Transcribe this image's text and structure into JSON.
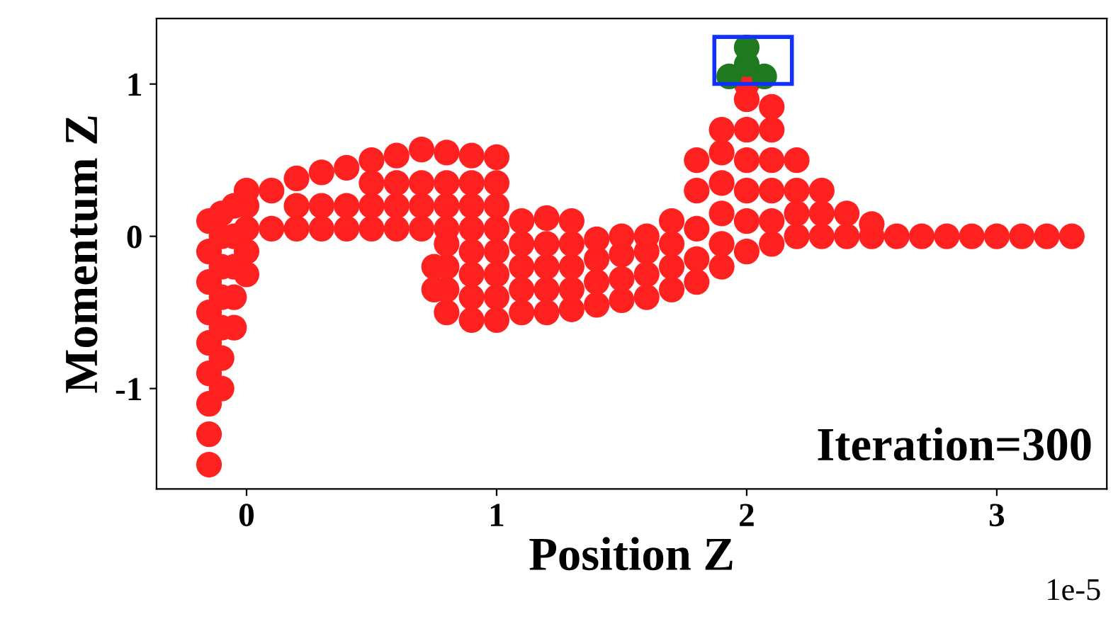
{
  "chart_data": {
    "type": "scatter",
    "xlabel": "Position Z",
    "ylabel": "Momentum Z",
    "xlim": [
      -0.36,
      3.44
    ],
    "ylim": [
      -1.66,
      1.43
    ],
    "xticks": [
      0,
      1,
      2,
      3
    ],
    "yticks": [
      -1,
      0,
      1
    ],
    "grid": false,
    "annotations": [
      "Iteration=300",
      "1e-5"
    ],
    "series": [
      {
        "color": "#ff2020",
        "marker": "circle",
        "x": [
          -0.15,
          -0.15,
          -0.15,
          -0.15,
          -0.15,
          -0.15,
          -0.15,
          -0.15,
          -0.15,
          -0.1,
          -0.1,
          -0.1,
          -0.1,
          -0.1,
          -0.1,
          -0.1,
          -0.05,
          -0.05,
          -0.05,
          -0.05,
          -0.05,
          0,
          0,
          0,
          0,
          0,
          0.1,
          0.1,
          0.2,
          0.2,
          0.2,
          0.3,
          0.3,
          0.3,
          0.4,
          0.4,
          0.4,
          0.5,
          0.5,
          0.5,
          0.5,
          0.6,
          0.6,
          0.6,
          0.6,
          0.7,
          0.7,
          0.7,
          0.7,
          0.8,
          0.8,
          0.8,
          0.8,
          0.9,
          0.9,
          0.9,
          0.9,
          1.0,
          1.0,
          1.0,
          1.0,
          0.75,
          0.75,
          0.8,
          0.8,
          0.8,
          0.8,
          0.9,
          0.9,
          0.9,
          0.9,
          1.0,
          1.0,
          1.0,
          1.0,
          1.0,
          1.1,
          1.1,
          1.1,
          1.1,
          1.1,
          1.2,
          1.2,
          1.2,
          1.2,
          1.2,
          1.3,
          1.3,
          1.3,
          1.3,
          1.3,
          1.4,
          1.4,
          1.4,
          1.4,
          1.5,
          1.5,
          1.5,
          1.5,
          1.6,
          1.6,
          1.6,
          1.6,
          1.7,
          1.7,
          1.7,
          1.7,
          1.8,
          1.8,
          1.8,
          1.8,
          1.8,
          1.9,
          1.9,
          1.9,
          1.9,
          1.9,
          1.9,
          2.0,
          2.0,
          2.0,
          2.0,
          2.0,
          2.0,
          2.0,
          2.1,
          2.1,
          2.1,
          2.1,
          2.1,
          2.1,
          2.2,
          2.2,
          2.2,
          2.2,
          2.3,
          2.3,
          2.3,
          2.4,
          2.4,
          2.5,
          2.5,
          2.6,
          2.7,
          2.8,
          2.9,
          3.0,
          3.1,
          3.2,
          3.3
        ],
        "values": [
          -1.5,
          -1.3,
          -1.1,
          -0.9,
          -0.7,
          -0.5,
          -0.3,
          -0.1,
          0.1,
          -1.0,
          -0.8,
          -0.6,
          -0.4,
          -0.2,
          0,
          0.15,
          -0.6,
          -0.4,
          -0.2,
          0,
          0.2,
          -0.25,
          -0.1,
          0.05,
          0.2,
          0.3,
          0.05,
          0.3,
          0.05,
          0.2,
          0.38,
          0.05,
          0.2,
          0.42,
          0.05,
          0.2,
          0.45,
          0.05,
          0.2,
          0.35,
          0.5,
          0.05,
          0.2,
          0.35,
          0.53,
          0.05,
          0.2,
          0.35,
          0.57,
          0.05,
          0.2,
          0.35,
          0.55,
          0.05,
          0.2,
          0.35,
          0.53,
          0.05,
          0.2,
          0.35,
          0.52,
          -0.2,
          -0.35,
          -0.5,
          -0.35,
          -0.2,
          -0.05,
          -0.55,
          -0.4,
          -0.25,
          -0.1,
          -0.55,
          -0.4,
          -0.25,
          -0.1,
          0.05,
          -0.5,
          -0.35,
          -0.2,
          -0.05,
          0.1,
          -0.5,
          -0.35,
          -0.2,
          -0.05,
          0.12,
          -0.48,
          -0.35,
          -0.2,
          -0.05,
          0.1,
          -0.45,
          -0.3,
          -0.15,
          -0.02,
          -0.42,
          -0.28,
          -0.12,
          0,
          -0.4,
          -0.25,
          -0.1,
          0,
          -0.35,
          -0.2,
          -0.05,
          0.1,
          -0.3,
          -0.15,
          0.05,
          0.3,
          0.5,
          -0.2,
          -0.05,
          0.15,
          0.35,
          0.55,
          0.7,
          -0.1,
          0.1,
          0.3,
          0.5,
          0.7,
          0.9,
          1.0,
          -0.05,
          0.1,
          0.3,
          0.5,
          0.7,
          0.85,
          0,
          0.15,
          0.3,
          0.5,
          0,
          0.15,
          0.3,
          0,
          0.15,
          0,
          0.08,
          0,
          0,
          0,
          0,
          0,
          0,
          0,
          0
        ]
      },
      {
        "color": "#1f7a1f",
        "marker": "circle",
        "x": [
          1.93,
          2.07,
          2.0,
          2.0
        ],
        "values": [
          1.05,
          1.05,
          1.13,
          1.24
        ]
      }
    ]
  }
}
